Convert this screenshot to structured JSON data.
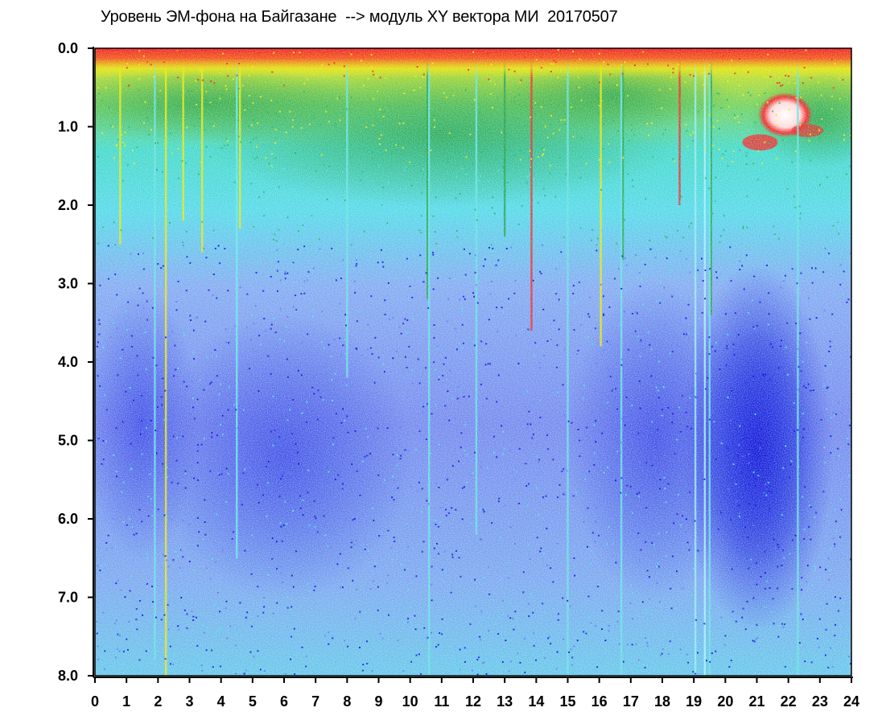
{
  "chart_data": {
    "type": "heatmap",
    "title": "Уровень ЭМ-фона на Байгазане  --> модуль XY вектора МИ  20170507",
    "x_ticks": [
      "0",
      "1",
      "2",
      "3",
      "4",
      "5",
      "6",
      "7",
      "8",
      "9",
      "10",
      "11",
      "12",
      "13",
      "14",
      "15",
      "16",
      "17",
      "18",
      "19",
      "20",
      "21",
      "22",
      "23",
      "24"
    ],
    "y_ticks": [
      "0.0",
      "1.0",
      "2.0",
      "3.0",
      "4.0",
      "5.0",
      "6.0",
      "7.0",
      "8.0"
    ],
    "xlim": [
      0,
      24
    ],
    "ylim": [
      0,
      8
    ],
    "y_inverted": true,
    "grid": false,
    "colormap": [
      "#0000dd",
      "#5a6ef0",
      "#8fa0f6",
      "#40e0e0",
      "#18b060",
      "#e8e800",
      "#f01818",
      "#ffffff"
    ],
    "dominant_pattern": "high intensity (red/yellow/green) near y=0.0 across all hours, thickest around x=9-13; cyan band to y~2; blue/light-blue below; deepest blue patch around x=20-22, y=3-7; saturated white/red spot near x=21.5-22, y=0.6-1.3",
    "line_color": "#000000"
  }
}
